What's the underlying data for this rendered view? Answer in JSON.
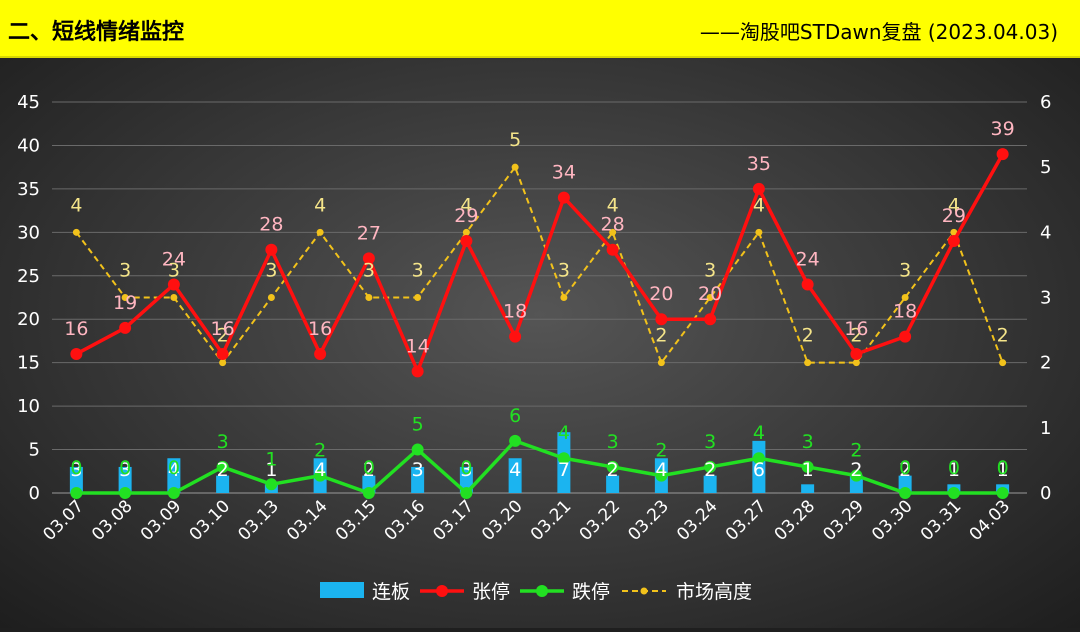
{
  "header": {
    "title": "二、短线情绪监控",
    "subtitle": "——淘股吧STDawn复盘 (2023.04.03)",
    "bg_color": "#ffff00"
  },
  "chart_data": {
    "type": "bar+line",
    "categories": [
      "03.07",
      "03.08",
      "03.09",
      "03.10",
      "03.13",
      "03.14",
      "03.15",
      "03.16",
      "03.17",
      "03.20",
      "03.21",
      "03.22",
      "03.23",
      "03.24",
      "03.27",
      "03.28",
      "03.29",
      "03.30",
      "03.31",
      "04.03"
    ],
    "left_axis": {
      "min": 0,
      "max": 45,
      "step": 5,
      "ticks": [
        "0",
        "5",
        "10",
        "15",
        "20",
        "25",
        "30",
        "35",
        "40",
        "45"
      ]
    },
    "right_axis": {
      "min": 0,
      "max": 6,
      "step": 1,
      "ticks": [
        "0",
        "1",
        "2",
        "3",
        "4",
        "5",
        "6"
      ]
    },
    "series": [
      {
        "name": "连板",
        "kind": "bar",
        "axis": "left",
        "color": "#1bb4f0",
        "label_color": "#ffffff",
        "values": [
          3,
          3,
          4,
          2,
          1,
          4,
          2,
          3,
          3,
          4,
          7,
          2,
          4,
          2,
          6,
          1,
          2,
          2,
          1,
          1
        ]
      },
      {
        "name": "张停",
        "kind": "line",
        "axis": "left",
        "color": "#ff1010",
        "label_color": "#ffb6c1",
        "values": [
          16,
          19,
          24,
          16,
          28,
          16,
          27,
          14,
          29,
          18,
          34,
          28,
          20,
          20,
          35,
          24,
          16,
          18,
          29,
          39
        ]
      },
      {
        "name": "跌停",
        "kind": "line",
        "axis": "left",
        "color": "#22e022",
        "label_color": "#22e022",
        "values": [
          0,
          0,
          0,
          3,
          1,
          2,
          0,
          5,
          0,
          6,
          4,
          3,
          2,
          3,
          4,
          3,
          2,
          0,
          0,
          0
        ]
      },
      {
        "name": "市场高度",
        "kind": "dashed",
        "axis": "right",
        "color": "#f2c21b",
        "label_color": "#f5e58a",
        "values": [
          4,
          3,
          3,
          2,
          3,
          4,
          3,
          3,
          4,
          5,
          3,
          4,
          2,
          3,
          4,
          2,
          2,
          3,
          4,
          2
        ]
      }
    ],
    "legend_position": "bottom",
    "grid": true
  }
}
